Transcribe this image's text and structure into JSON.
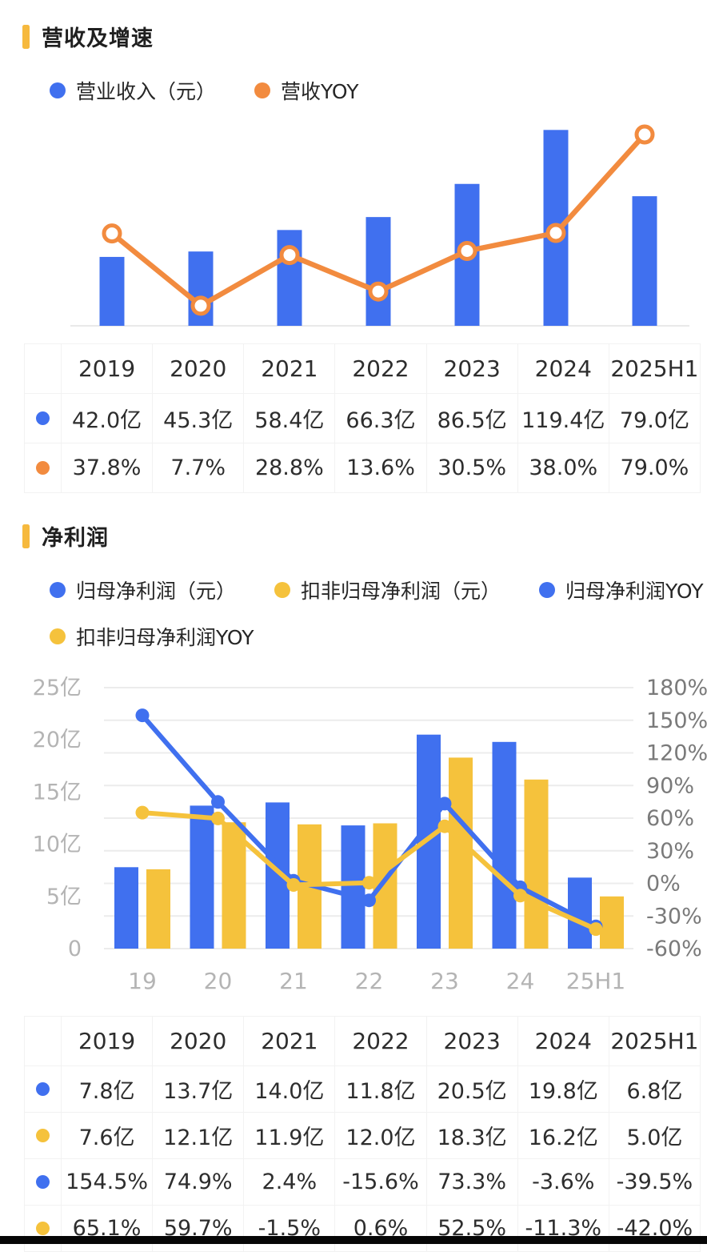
{
  "colors": {
    "blue": "#4070ef",
    "orange": "#f28b3f",
    "yellow": "#f5c23c",
    "accent": "#f6b93e",
    "grid": "#ececec",
    "axis_left_text": "#b4b4b4",
    "axis_right_text": "#7a7a7a",
    "axis_x_text": "#b4b4b4"
  },
  "section_revenue": {
    "title": "营收及增速",
    "legend_rows": [
      [
        {
          "label": "营业收入（元）",
          "color": "#4070ef",
          "icon": "blue-dot-icon"
        },
        {
          "label": "营收YOY",
          "color": "#f28b3f",
          "icon": "orange-dot-icon"
        }
      ]
    ],
    "table": {
      "columns": [
        "2019",
        "2020",
        "2021",
        "2022",
        "2023",
        "2024",
        "2025H1"
      ],
      "rows": [
        {
          "series": "营业收入",
          "dot": "#4070ef",
          "values": [
            "42.0亿",
            "45.3亿",
            "58.4亿",
            "66.3亿",
            "86.5亿",
            "119.4亿",
            "79.0亿"
          ]
        },
        {
          "series": "营收YOY",
          "dot": "#f28b3f",
          "values": [
            "37.8%",
            "7.7%",
            "28.8%",
            "13.6%",
            "30.5%",
            "38.0%",
            "79.0%"
          ]
        }
      ]
    }
  },
  "section_profit": {
    "title": "净利润",
    "legend_rows": [
      [
        {
          "label": "归母净利润（元）",
          "color": "#4070ef",
          "icon": "blue-dot-icon"
        },
        {
          "label": "扣非归母净利润（元）",
          "color": "#f5c23c",
          "icon": "yellow-dot-icon"
        },
        {
          "label": "归母净利润YOY",
          "color": "#4070ef",
          "icon": "blue-dot-icon"
        }
      ],
      [
        {
          "label": "扣非归母净利润YOY",
          "color": "#f5c23c",
          "icon": "yellow-dot-icon"
        }
      ]
    ],
    "table": {
      "columns": [
        "2019",
        "2020",
        "2021",
        "2022",
        "2023",
        "2024",
        "2025H1"
      ],
      "rows": [
        {
          "series": "归母净利润",
          "dot": "#4070ef",
          "values": [
            "7.8亿",
            "13.7亿",
            "14.0亿",
            "11.8亿",
            "20.5亿",
            "19.8亿",
            "6.8亿"
          ]
        },
        {
          "series": "扣非归母净利润",
          "dot": "#f5c23c",
          "values": [
            "7.6亿",
            "12.1亿",
            "11.9亿",
            "12.0亿",
            "18.3亿",
            "16.2亿",
            "5.0亿"
          ]
        },
        {
          "series": "归母净利润YOY",
          "dot": "#4070ef",
          "values": [
            "154.5%",
            "74.9%",
            "2.4%",
            "-15.6%",
            "73.3%",
            "-3.6%",
            "-39.5%"
          ]
        },
        {
          "series": "扣非归母净利润YOY",
          "dot": "#f5c23c",
          "values": [
            "65.1%",
            "59.7%",
            "-1.5%",
            "0.6%",
            "52.5%",
            "-11.3%",
            "-42.0%"
          ]
        }
      ]
    }
  },
  "chart_data": [
    {
      "type": "bar+line",
      "title": "营收及增速",
      "categories": [
        "2019",
        "2020",
        "2021",
        "2022",
        "2023",
        "2024",
        "2025H1"
      ],
      "series": [
        {
          "name": "营业收入(元)",
          "type": "bar",
          "unit": "亿",
          "color": "#4070ef",
          "values": [
            42.0,
            45.3,
            58.4,
            66.3,
            86.5,
            119.4,
            79.0
          ]
        },
        {
          "name": "营收YOY",
          "type": "line",
          "unit": "%",
          "color": "#f28b3f",
          "marker": "open-circle",
          "values": [
            37.8,
            7.7,
            28.8,
            13.6,
            30.5,
            38.0,
            79.0
          ]
        }
      ],
      "left_axis": {
        "min": 0,
        "max": 122,
        "labels_visible": false
      },
      "right_axis": {
        "min": 0,
        "max": 85,
        "labels_visible": false
      },
      "grid": false,
      "legend_position": "top"
    },
    {
      "type": "bar+line",
      "title": "净利润",
      "categories": [
        "19",
        "20",
        "21",
        "22",
        "23",
        "24",
        "25H1"
      ],
      "series": [
        {
          "name": "归母净利润(元)",
          "type": "bar",
          "unit": "亿",
          "color": "#4070ef",
          "values": [
            7.8,
            13.7,
            14.0,
            11.8,
            20.5,
            19.8,
            6.8
          ]
        },
        {
          "name": "扣非归母净利润(元)",
          "type": "bar",
          "unit": "亿",
          "color": "#f5c23c",
          "values": [
            7.6,
            12.1,
            11.9,
            12.0,
            18.3,
            16.2,
            5.0
          ]
        },
        {
          "name": "归母净利润YOY",
          "type": "line",
          "unit": "%",
          "color": "#4070ef",
          "marker": "solid-circle",
          "values": [
            154.5,
            74.9,
            2.4,
            -15.6,
            73.3,
            -3.6,
            -39.5
          ]
        },
        {
          "name": "扣非归母净利润YOY",
          "type": "line",
          "unit": "%",
          "color": "#f5c23c",
          "marker": "solid-circle",
          "values": [
            65.1,
            59.7,
            -1.5,
            0.6,
            52.5,
            -11.3,
            -42.0
          ]
        }
      ],
      "left_axis": {
        "min": 0,
        "max": 25,
        "ticks": [
          "25亿",
          "20亿",
          "15亿",
          "10亿",
          "5亿",
          "0"
        ]
      },
      "right_axis": {
        "min": -60,
        "max": 180,
        "step": 30,
        "ticks": [
          "180%",
          "150%",
          "120%",
          "90%",
          "60%",
          "30%",
          "0%",
          "-30%",
          "-60%"
        ]
      },
      "grid": true,
      "legend_position": "top"
    }
  ]
}
